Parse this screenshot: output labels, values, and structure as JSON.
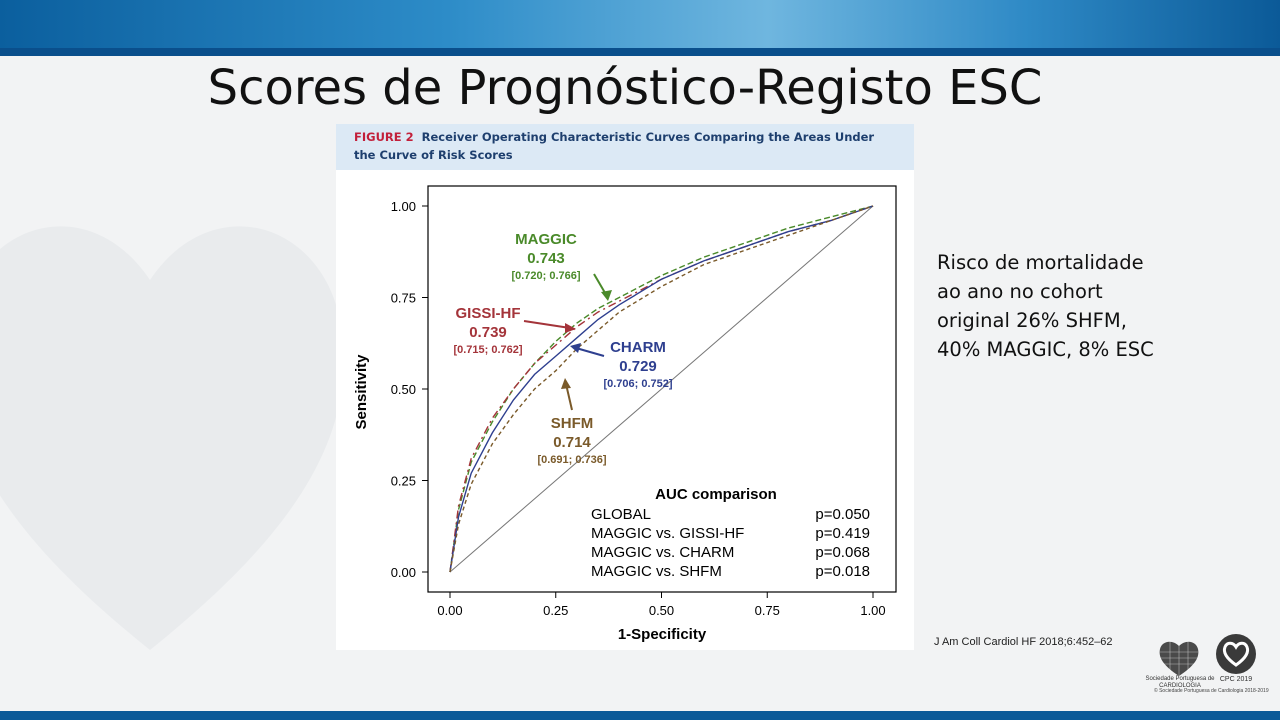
{
  "slide": {
    "title": "Scores de Prognóstico-Registo ESC",
    "side_text": [
      "Risco de mortalidade",
      "ao ano no cohort",
      "original  26% SHFM,",
      "40% MAGGIC, 8% ESC"
    ],
    "citation": "J Am Coll Cardiol HF 2018;6:452–62",
    "logo_spc_text": "Sociedade Portuguesa de CARDIOLOGIA",
    "logo_cpc_text": "CPC 2019",
    "footer_note": "© Sociedade Portuguesa de Cardiologia 2018-2019"
  },
  "figure": {
    "label": "FIGURE 2",
    "caption": "Receiver Operating Characteristic Curves Comparing the Areas Under the Curve of Risk Scores"
  },
  "chart_data": {
    "type": "line",
    "xlabel": "1-Specificity",
    "ylabel": "Sensitivity",
    "xlim": [
      0,
      1
    ],
    "ylim": [
      0,
      1
    ],
    "x_ticks": [
      "0.00",
      "0.25",
      "0.50",
      "0.75",
      "1.00"
    ],
    "y_ticks": [
      "0.00",
      "0.25",
      "0.50",
      "0.75",
      "1.00"
    ],
    "grid": false,
    "reference_line": true,
    "series": [
      {
        "name": "MAGGIC",
        "auc": "0.743",
        "ci": "[0.720; 0.766]",
        "color": "#4a8a2a",
        "x": [
          0,
          0.02,
          0.05,
          0.1,
          0.15,
          0.2,
          0.25,
          0.3,
          0.35,
          0.4,
          0.5,
          0.6,
          0.7,
          0.8,
          0.9,
          1.0
        ],
        "y": [
          0,
          0.17,
          0.3,
          0.41,
          0.5,
          0.57,
          0.63,
          0.68,
          0.72,
          0.75,
          0.81,
          0.86,
          0.9,
          0.94,
          0.97,
          1.0
        ]
      },
      {
        "name": "GISSI-HF",
        "auc": "0.739",
        "ci": "[0.715; 0.762]",
        "color": "#a4343a",
        "x": [
          0,
          0.02,
          0.05,
          0.1,
          0.15,
          0.2,
          0.25,
          0.3,
          0.35,
          0.4,
          0.5,
          0.6,
          0.7,
          0.8,
          0.9,
          1.0
        ],
        "y": [
          0,
          0.18,
          0.31,
          0.42,
          0.5,
          0.57,
          0.62,
          0.67,
          0.71,
          0.74,
          0.8,
          0.85,
          0.89,
          0.93,
          0.96,
          1.0
        ]
      },
      {
        "name": "CHARM",
        "auc": "0.729",
        "ci": "[0.706; 0.752]",
        "color": "#2e3f8f",
        "x": [
          0,
          0.02,
          0.05,
          0.1,
          0.15,
          0.2,
          0.25,
          0.3,
          0.35,
          0.4,
          0.5,
          0.6,
          0.7,
          0.8,
          0.9,
          1.0
        ],
        "y": [
          0,
          0.15,
          0.27,
          0.38,
          0.47,
          0.54,
          0.59,
          0.64,
          0.69,
          0.73,
          0.8,
          0.85,
          0.89,
          0.93,
          0.96,
          1.0
        ]
      },
      {
        "name": "SHFM",
        "auc": "0.714",
        "ci": "[0.691; 0.736]",
        "color": "#7a5a2a",
        "x": [
          0,
          0.02,
          0.05,
          0.1,
          0.15,
          0.2,
          0.25,
          0.3,
          0.35,
          0.4,
          0.5,
          0.6,
          0.7,
          0.8,
          0.9,
          1.0
        ],
        "y": [
          0,
          0.13,
          0.24,
          0.35,
          0.43,
          0.5,
          0.55,
          0.61,
          0.66,
          0.71,
          0.78,
          0.84,
          0.88,
          0.92,
          0.96,
          1.0
        ]
      }
    ],
    "auc_comparison": {
      "title": "AUC comparison",
      "rows": [
        {
          "label": "GLOBAL",
          "p": "p=0.050"
        },
        {
          "label": "MAGGIC vs. GISSI-HF",
          "p": "p=0.419"
        },
        {
          "label": "MAGGIC vs. CHARM",
          "p": "p=0.068"
        },
        {
          "label": "MAGGIC vs. SHFM",
          "p": "p=0.018"
        }
      ]
    }
  }
}
